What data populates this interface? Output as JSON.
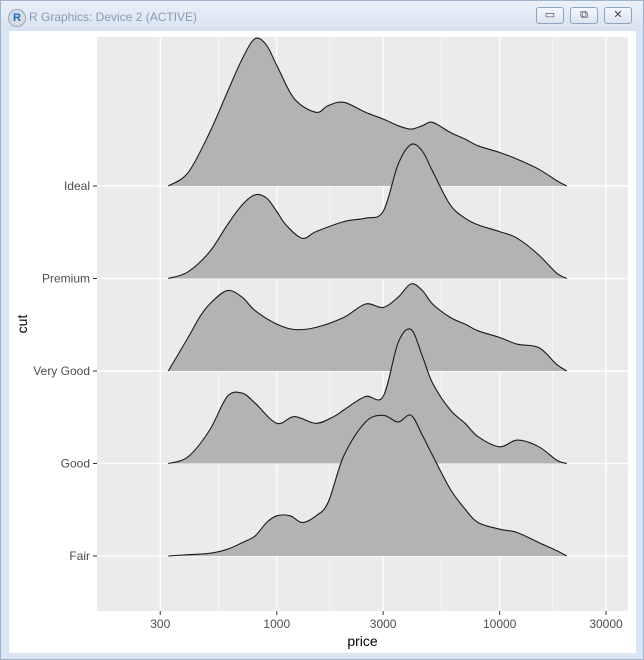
{
  "window": {
    "title": "R Graphics: Device 2 (ACTIVE)",
    "app_icon_letter": "R",
    "min_symbol": "▭",
    "max_symbol": "⧉",
    "close_symbol": "✕"
  },
  "chart_data": {
    "type": "ridgeline",
    "xlabel": "price",
    "ylabel": "cut",
    "x_scale": "log10",
    "x_ticks": [
      300,
      1000,
      3000,
      10000,
      30000
    ],
    "x_tick_labels": [
      "300",
      "1000",
      "3000",
      "10000",
      "30000"
    ],
    "xlim": [
      200,
      30000
    ],
    "categories": [
      "Fair",
      "Good",
      "Very Good",
      "Premium",
      "Ideal"
    ],
    "fill_color": "#b3b3b3",
    "panel_color": "#ebebeb",
    "grid": true,
    "series": [
      {
        "category": "Fair",
        "x": [
          326,
          400,
          500,
          600,
          700,
          800,
          900,
          1000,
          1150,
          1300,
          1500,
          1700,
          2000,
          2500,
          3000,
          3500,
          4000,
          4500,
          5000,
          6000,
          7000,
          8000,
          10000,
          12000,
          15000,
          18000,
          20000
        ],
        "y": [
          0.0,
          0.02,
          0.04,
          0.1,
          0.2,
          0.3,
          0.5,
          0.6,
          0.6,
          0.5,
          0.6,
          0.8,
          1.5,
          2.0,
          2.1,
          2.0,
          2.1,
          1.8,
          1.5,
          1.0,
          0.7,
          0.5,
          0.4,
          0.35,
          0.2,
          0.08,
          0.0
        ]
      },
      {
        "category": "Good",
        "x": [
          326,
          400,
          500,
          600,
          700,
          800,
          1000,
          1200,
          1500,
          1800,
          2000,
          2500,
          3000,
          3500,
          4000,
          4500,
          5000,
          6000,
          7000,
          8000,
          10000,
          12000,
          15000,
          18000,
          20000
        ],
        "y": [
          0.0,
          0.1,
          0.5,
          1.0,
          1.05,
          0.9,
          0.6,
          0.7,
          0.6,
          0.7,
          0.8,
          1.0,
          1.0,
          1.8,
          2.0,
          1.6,
          1.2,
          0.8,
          0.6,
          0.4,
          0.25,
          0.35,
          0.25,
          0.05,
          0.0
        ]
      },
      {
        "category": "Very Good",
        "x": [
          326,
          400,
          450,
          500,
          600,
          700,
          800,
          1000,
          1200,
          1500,
          2000,
          2500,
          3000,
          3500,
          4000,
          4500,
          5000,
          6000,
          7000,
          8000,
          10000,
          12000,
          15000,
          18000,
          20000
        ],
        "y": [
          0.0,
          0.5,
          0.8,
          1.0,
          1.2,
          1.1,
          0.9,
          0.7,
          0.62,
          0.65,
          0.8,
          1.0,
          0.95,
          1.1,
          1.3,
          1.2,
          1.0,
          0.8,
          0.7,
          0.6,
          0.5,
          0.4,
          0.35,
          0.1,
          0.0
        ]
      },
      {
        "category": "Premium",
        "x": [
          326,
          400,
          500,
          600,
          700,
          800,
          900,
          1000,
          1100,
          1300,
          1500,
          2000,
          2500,
          3000,
          3500,
          4000,
          4500,
          5000,
          6000,
          7000,
          8000,
          10000,
          12000,
          15000,
          18000,
          20000
        ],
        "y": [
          0.0,
          0.1,
          0.4,
          0.8,
          1.1,
          1.25,
          1.2,
          1.0,
          0.8,
          0.6,
          0.7,
          0.85,
          0.9,
          1.0,
          1.7,
          2.0,
          1.9,
          1.6,
          1.1,
          0.9,
          0.8,
          0.7,
          0.6,
          0.35,
          0.08,
          0.0
        ]
      },
      {
        "category": "Ideal",
        "x": [
          326,
          400,
          500,
          600,
          700,
          800,
          900,
          1000,
          1200,
          1500,
          1700,
          2000,
          2500,
          3000,
          3500,
          4000,
          4500,
          5000,
          6000,
          7000,
          8000,
          10000,
          12000,
          15000,
          18000,
          20000
        ],
        "y": [
          0.0,
          0.2,
          0.8,
          1.4,
          1.9,
          2.2,
          2.1,
          1.8,
          1.3,
          1.1,
          1.2,
          1.25,
          1.1,
          1.0,
          0.9,
          0.85,
          0.9,
          0.95,
          0.8,
          0.7,
          0.6,
          0.5,
          0.4,
          0.25,
          0.08,
          0.0
        ]
      }
    ]
  }
}
